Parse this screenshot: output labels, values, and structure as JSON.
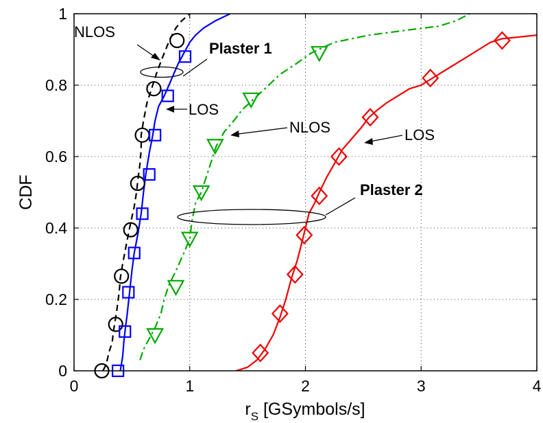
{
  "chart_data": {
    "type": "line",
    "xlabel": "r",
    "xlabel_sub": "S",
    "xlabel_rest": " [GSymbols/s]",
    "ylabel": "CDF",
    "xlim": [
      0,
      4
    ],
    "ylim": [
      0,
      1
    ],
    "grid": true,
    "x_ticks": [
      "0",
      "1",
      "2",
      "3",
      "4"
    ],
    "y_ticks": [
      "0",
      "0.2",
      "0.4",
      "0.6",
      "0.8",
      "1"
    ],
    "series": [
      {
        "group": "Plaster 1",
        "condition": "NLOS",
        "color": "#000000",
        "dash": "9,6",
        "marker": "circle",
        "points": [
          [
            0.25,
            0.0
          ],
          [
            0.28,
            0.02
          ],
          [
            0.3,
            0.05
          ],
          [
            0.33,
            0.08
          ],
          [
            0.34,
            0.11
          ],
          [
            0.35,
            0.13
          ],
          [
            0.37,
            0.17
          ],
          [
            0.39,
            0.22
          ],
          [
            0.4,
            0.26
          ],
          [
            0.42,
            0.3
          ],
          [
            0.45,
            0.35
          ],
          [
            0.48,
            0.4
          ],
          [
            0.52,
            0.46
          ],
          [
            0.54,
            0.5
          ],
          [
            0.55,
            0.53
          ],
          [
            0.57,
            0.58
          ],
          [
            0.58,
            0.62
          ],
          [
            0.58,
            0.66
          ],
          [
            0.6,
            0.7
          ],
          [
            0.63,
            0.75
          ],
          [
            0.67,
            0.79
          ],
          [
            0.72,
            0.84
          ],
          [
            0.78,
            0.89
          ],
          [
            0.83,
            0.93
          ],
          [
            0.88,
            0.96
          ],
          [
            0.93,
            0.98
          ],
          [
            1.0,
            1.0
          ]
        ],
        "markers": [
          [
            0.24,
            0.0
          ],
          [
            0.36,
            0.13
          ],
          [
            0.41,
            0.265
          ],
          [
            0.49,
            0.395
          ],
          [
            0.55,
            0.525
          ],
          [
            0.59,
            0.66
          ],
          [
            0.69,
            0.79
          ],
          [
            0.89,
            0.925
          ]
        ]
      },
      {
        "group": "Plaster 1",
        "condition": "LOS",
        "color": "#0000ff",
        "dash": "",
        "marker": "square",
        "points": [
          [
            0.4,
            0.0
          ],
          [
            0.42,
            0.04
          ],
          [
            0.43,
            0.08
          ],
          [
            0.44,
            0.11
          ],
          [
            0.46,
            0.16
          ],
          [
            0.48,
            0.22
          ],
          [
            0.5,
            0.28
          ],
          [
            0.52,
            0.33
          ],
          [
            0.55,
            0.38
          ],
          [
            0.58,
            0.44
          ],
          [
            0.6,
            0.5
          ],
          [
            0.62,
            0.55
          ],
          [
            0.65,
            0.61
          ],
          [
            0.68,
            0.66
          ],
          [
            0.7,
            0.7
          ],
          [
            0.73,
            0.74
          ],
          [
            0.78,
            0.77
          ],
          [
            0.82,
            0.8
          ],
          [
            0.86,
            0.83
          ],
          [
            0.9,
            0.86
          ],
          [
            0.95,
            0.89
          ],
          [
            1.0,
            0.92
          ],
          [
            1.05,
            0.94
          ],
          [
            1.12,
            0.96
          ],
          [
            1.22,
            0.98
          ],
          [
            1.35,
            1.0
          ]
        ],
        "markers": [
          [
            0.38,
            0.0
          ],
          [
            0.44,
            0.11
          ],
          [
            0.47,
            0.22
          ],
          [
            0.52,
            0.33
          ],
          [
            0.59,
            0.44
          ],
          [
            0.65,
            0.55
          ],
          [
            0.7,
            0.66
          ],
          [
            0.81,
            0.77
          ],
          [
            0.96,
            0.88
          ]
        ]
      },
      {
        "group": "Plaster 2",
        "condition": "NLOS",
        "color": "#00aa00",
        "dash": "12,5,3,5",
        "marker": "triangle",
        "points": [
          [
            0.57,
            0.03
          ],
          [
            0.6,
            0.06
          ],
          [
            0.65,
            0.09
          ],
          [
            0.7,
            0.12
          ],
          [
            0.75,
            0.16
          ],
          [
            0.78,
            0.2
          ],
          [
            0.82,
            0.24
          ],
          [
            0.88,
            0.28
          ],
          [
            0.95,
            0.33
          ],
          [
            1.0,
            0.37
          ],
          [
            1.02,
            0.42
          ],
          [
            1.05,
            0.47
          ],
          [
            1.1,
            0.5
          ],
          [
            1.14,
            0.54
          ],
          [
            1.18,
            0.58
          ],
          [
            1.23,
            0.63
          ],
          [
            1.3,
            0.67
          ],
          [
            1.38,
            0.7
          ],
          [
            1.45,
            0.73
          ],
          [
            1.55,
            0.76
          ],
          [
            1.65,
            0.79
          ],
          [
            1.78,
            0.83
          ],
          [
            1.92,
            0.86
          ],
          [
            2.05,
            0.89
          ],
          [
            2.25,
            0.92
          ],
          [
            2.55,
            0.94
          ],
          [
            2.9,
            0.955
          ],
          [
            3.15,
            0.965
          ],
          [
            3.3,
            0.98
          ],
          [
            3.42,
            1.0
          ]
        ],
        "markers": [
          [
            0.7,
            0.1
          ],
          [
            0.88,
            0.235
          ],
          [
            1.0,
            0.37
          ],
          [
            1.1,
            0.5
          ],
          [
            1.22,
            0.63
          ],
          [
            1.53,
            0.76
          ],
          [
            2.12,
            0.89
          ]
        ]
      },
      {
        "group": "Plaster 2",
        "condition": "LOS",
        "color": "#ee0000",
        "dash": "",
        "marker": "diamond",
        "points": [
          [
            1.4,
            0.0
          ],
          [
            1.5,
            0.01
          ],
          [
            1.58,
            0.03
          ],
          [
            1.65,
            0.06
          ],
          [
            1.72,
            0.1
          ],
          [
            1.78,
            0.15
          ],
          [
            1.83,
            0.2
          ],
          [
            1.88,
            0.26
          ],
          [
            1.93,
            0.31
          ],
          [
            1.97,
            0.36
          ],
          [
            2.0,
            0.4
          ],
          [
            2.03,
            0.44
          ],
          [
            2.08,
            0.47
          ],
          [
            2.12,
            0.5
          ],
          [
            2.18,
            0.54
          ],
          [
            2.25,
            0.58
          ],
          [
            2.32,
            0.62
          ],
          [
            2.4,
            0.65
          ],
          [
            2.48,
            0.68
          ],
          [
            2.55,
            0.71
          ],
          [
            2.62,
            0.73
          ],
          [
            2.7,
            0.75
          ],
          [
            2.8,
            0.77
          ],
          [
            2.9,
            0.79
          ],
          [
            3.0,
            0.8
          ],
          [
            3.1,
            0.82
          ],
          [
            3.2,
            0.84
          ],
          [
            3.3,
            0.86
          ],
          [
            3.4,
            0.88
          ],
          [
            3.5,
            0.9
          ],
          [
            3.6,
            0.92
          ],
          [
            3.7,
            0.93
          ],
          [
            3.85,
            0.935
          ],
          [
            4.0,
            0.94
          ]
        ],
        "markers": [
          [
            1.61,
            0.05
          ],
          [
            1.78,
            0.16
          ],
          [
            1.91,
            0.27
          ],
          [
            1.99,
            0.38
          ],
          [
            2.12,
            0.49
          ],
          [
            2.29,
            0.6
          ],
          [
            2.56,
            0.71
          ],
          [
            3.08,
            0.82
          ],
          [
            3.7,
            0.925
          ]
        ]
      }
    ],
    "annotations": {
      "plaster1": "Plaster 1",
      "plaster2": "Plaster 2",
      "nlos_1": "NLOS",
      "los_1": "LOS",
      "nlos_2": "NLOS",
      "los_2": "LOS"
    }
  }
}
